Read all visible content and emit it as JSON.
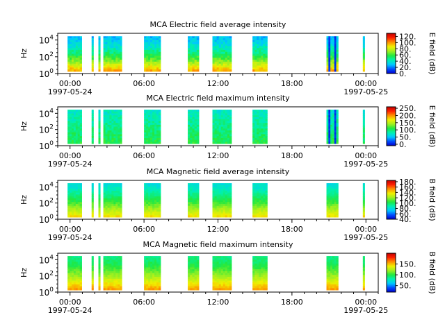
{
  "chart_data": [
    {
      "type": "heatmap",
      "title": "MCA  Electric field average intensity",
      "ylabel": "Hz",
      "ytick_labels": [
        {
          "base": "10",
          "exp": "0"
        },
        {
          "base": "10",
          "exp": "2"
        },
        {
          "base": "10",
          "exp": "4"
        }
      ],
      "ylim_exp": [
        0,
        4.8
      ],
      "xlim_hours": [
        -1.0,
        25.0
      ],
      "xtick_labels": [
        "00:00",
        "06:00",
        "12:00",
        "18:00",
        "00:00"
      ],
      "xtick_hours": [
        0,
        6,
        12,
        18,
        24
      ],
      "date_labels": [
        "1997-05-24",
        "1997-05-25"
      ],
      "data_time_spans_hours": [
        [
          -0.2,
          0.95
        ],
        [
          1.75,
          1.9
        ],
        [
          2.3,
          2.45
        ],
        [
          2.7,
          4.2
        ],
        [
          6.0,
          7.35
        ],
        [
          9.55,
          10.45
        ],
        [
          11.55,
          13.1
        ],
        [
          14.8,
          16.0
        ],
        [
          20.8,
          21.75
        ],
        [
          23.75,
          23.9
        ]
      ],
      "colorbar": {
        "label": "E field (dB)",
        "range": [
          0,
          130
        ],
        "ticks": [
          0,
          20,
          40,
          60,
          80,
          100,
          120
        ],
        "tick_labels": [
          "0.",
          "20.",
          "40.",
          "60.",
          "80.",
          "100.",
          "120."
        ]
      },
      "intensity_profile": "average-e"
    },
    {
      "type": "heatmap",
      "title": "MCA  Electric field maximum intensity",
      "ylabel": "Hz",
      "ytick_labels": [
        {
          "base": "10",
          "exp": "0"
        },
        {
          "base": "10",
          "exp": "2"
        },
        {
          "base": "10",
          "exp": "4"
        }
      ],
      "ylim_exp": [
        0,
        4.8
      ],
      "xlim_hours": [
        -1.0,
        25.0
      ],
      "xtick_labels": [
        "00:00",
        "06:00",
        "12:00",
        "18:00",
        "00:00"
      ],
      "xtick_hours": [
        0,
        6,
        12,
        18,
        24
      ],
      "date_labels": [
        "1997-05-24",
        "1997-05-25"
      ],
      "data_time_spans_hours": [
        [
          -0.2,
          0.95
        ],
        [
          1.75,
          1.9
        ],
        [
          2.3,
          2.45
        ],
        [
          2.7,
          4.2
        ],
        [
          6.0,
          7.35
        ],
        [
          9.55,
          10.45
        ],
        [
          11.55,
          13.1
        ],
        [
          14.8,
          16.0
        ],
        [
          20.8,
          21.75
        ],
        [
          23.75,
          23.9
        ]
      ],
      "colorbar": {
        "label": "E field (dB)",
        "range": [
          -10,
          260
        ],
        "ticks": [
          0,
          50,
          100,
          150,
          200,
          250
        ],
        "tick_labels": [
          "0.",
          "50.",
          "100.",
          "150.",
          "200.",
          "250."
        ]
      },
      "intensity_profile": "maximum-e"
    },
    {
      "type": "heatmap",
      "title": "MCA  Magnetic field average intensity",
      "ylabel": "Hz",
      "ytick_labels": [
        {
          "base": "10",
          "exp": "0"
        },
        {
          "base": "10",
          "exp": "2"
        },
        {
          "base": "10",
          "exp": "4"
        }
      ],
      "ylim_exp": [
        0,
        4.8
      ],
      "xlim_hours": [
        -1.0,
        25.0
      ],
      "xtick_labels": [
        "00:00",
        "06:00",
        "12:00",
        "18:00",
        "00:00"
      ],
      "xtick_hours": [
        0,
        6,
        12,
        18,
        24
      ],
      "date_labels": [
        "1997-05-24",
        "1997-05-25"
      ],
      "data_time_spans_hours": [
        [
          -0.2,
          0.95
        ],
        [
          1.75,
          1.9
        ],
        [
          2.3,
          2.45
        ],
        [
          2.7,
          4.2
        ],
        [
          6.0,
          7.35
        ],
        [
          9.55,
          10.45
        ],
        [
          11.55,
          13.1
        ],
        [
          14.8,
          16.0
        ],
        [
          20.8,
          21.75
        ],
        [
          23.75,
          23.9
        ]
      ],
      "colorbar": {
        "label": "B field (dB)",
        "range": [
          40,
          185
        ],
        "ticks": [
          40,
          60,
          80,
          100,
          120,
          140,
          160,
          180
        ],
        "tick_labels": [
          "40.",
          "60.",
          "80.",
          "100.",
          "120.",
          "140.",
          "160.",
          "180."
        ]
      },
      "intensity_profile": "average-b"
    },
    {
      "type": "heatmap",
      "title": "MCA  Magnetic field maximum intensity",
      "ylabel": "Hz",
      "ytick_labels": [
        {
          "base": "10",
          "exp": "0"
        },
        {
          "base": "10",
          "exp": "2"
        },
        {
          "base": "10",
          "exp": "4"
        }
      ],
      "ylim_exp": [
        0,
        4.8
      ],
      "xlim_hours": [
        -1.0,
        25.0
      ],
      "xtick_labels": [
        "00:00",
        "06:00",
        "12:00",
        "18:00",
        "00:00"
      ],
      "xtick_hours": [
        0,
        6,
        12,
        18,
        24
      ],
      "date_labels": [
        "1997-05-24",
        "1997-05-25"
      ],
      "data_time_spans_hours": [
        [
          -0.2,
          0.95
        ],
        [
          1.75,
          1.9
        ],
        [
          2.3,
          2.45
        ],
        [
          2.7,
          4.2
        ],
        [
          6.0,
          7.35
        ],
        [
          9.55,
          10.45
        ],
        [
          11.55,
          13.1
        ],
        [
          14.8,
          16.0
        ],
        [
          20.8,
          21.75
        ],
        [
          23.75,
          23.9
        ]
      ],
      "colorbar": {
        "label": "B field (dB)",
        "range": [
          20,
          200
        ],
        "ticks": [
          50,
          100,
          150
        ],
        "tick_labels": [
          "50.",
          "100.",
          "150."
        ]
      },
      "intensity_profile": "maximum-b"
    }
  ],
  "palette": [
    "#0000cc",
    "#0050ff",
    "#00c8ff",
    "#00f0b0",
    "#20e840",
    "#a0f020",
    "#f0f000",
    "#ff9000",
    "#ff2000",
    "#c00000"
  ]
}
